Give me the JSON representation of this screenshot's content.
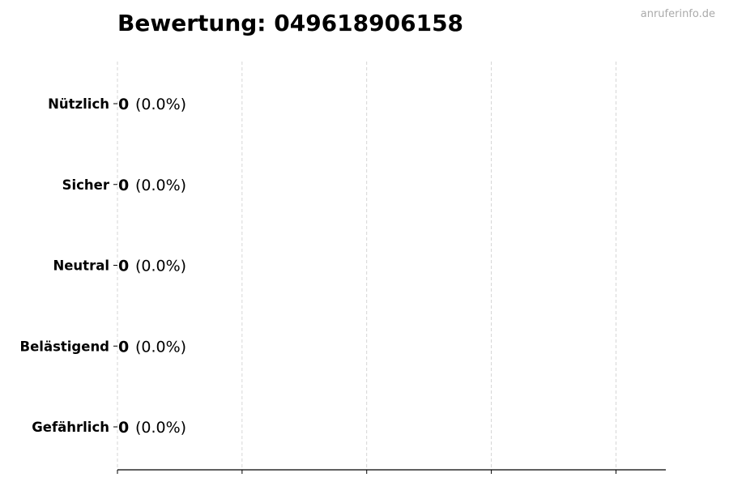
{
  "chart_data": {
    "type": "bar",
    "orientation": "horizontal",
    "title": "Bewertung: 049618906158",
    "categories": [
      "Nützlich",
      "Sicher",
      "Neutral",
      "Belästigend",
      "Gefährlich"
    ],
    "values": [
      0,
      0,
      0,
      0,
      0
    ],
    "labels": [
      {
        "count": "0",
        "percent": "(0.0%)"
      },
      {
        "count": "0",
        "percent": "(0.0%)"
      },
      {
        "count": "0",
        "percent": "(0.0%)"
      },
      {
        "count": "0",
        "percent": "(0.0%)"
      },
      {
        "count": "0",
        "percent": "(0.0%)"
      }
    ],
    "xlabel": "",
    "ylabel": "",
    "xlim": [
      0,
      4.4
    ],
    "xticks": [
      0,
      1,
      2,
      3,
      4
    ],
    "grid": "x, dashed",
    "legend": "none",
    "colors": {
      "bar_edge": "#000000",
      "grid": "#cccccc"
    }
  },
  "watermark": "anruferinfo.de"
}
